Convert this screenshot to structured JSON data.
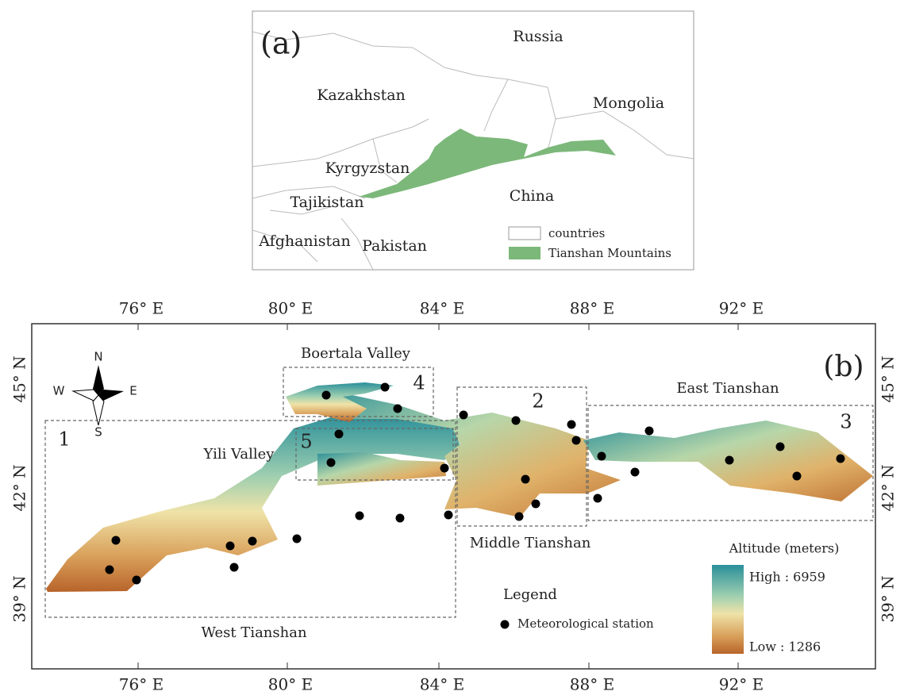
{
  "panel_a": {
    "label": "(a)",
    "countries": [
      "Russia",
      "Kazakhstan",
      "Mongolia",
      "Kyrgyzstan",
      "Tajikistan",
      "China",
      "Afghanistan",
      "Pakistan"
    ],
    "legend": [
      "countries",
      "Tianshan Mountains"
    ]
  },
  "panel_b": {
    "label": "(b)",
    "lon_labels": [
      "76° E",
      "80° E",
      "84° E",
      "88° E",
      "92° E"
    ],
    "lat_labels": [
      "39° N",
      "42° N",
      "45° N"
    ],
    "regions": [
      {
        "number": "1",
        "name": "West Tianshan"
      },
      {
        "number": "2",
        "name": "Middle Tianshan"
      },
      {
        "number": "3",
        "name": "East Tianshan"
      },
      {
        "number": "4",
        "name": "Boertala Valley"
      },
      {
        "number": "5",
        "name": "Yili Valley"
      }
    ],
    "compass": [
      "N",
      "S",
      "W",
      "E"
    ],
    "legend": {
      "title": "Legend",
      "station": "Meteorological station"
    },
    "altitude": {
      "title": "Altitude (meters)",
      "high": "High : 6959",
      "low": "Low : 1286"
    }
  }
}
